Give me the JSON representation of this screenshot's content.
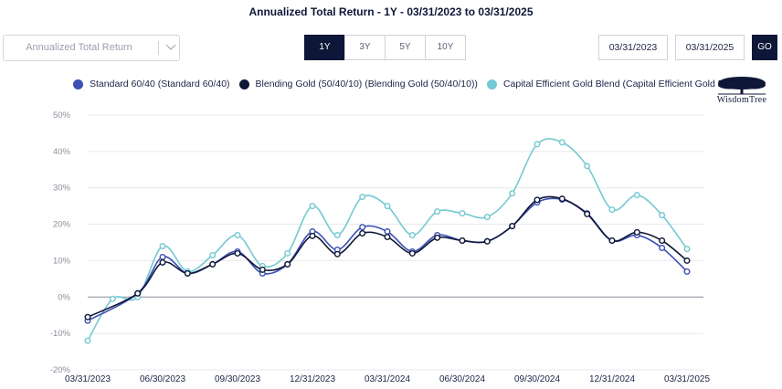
{
  "title": "Annualized Total Return - 1Y - 03/31/2023 to 03/31/2025",
  "controls": {
    "metric_dropdown": "Annualized Total Return",
    "periods": [
      "1Y",
      "3Y",
      "5Y",
      "10Y"
    ],
    "active_period": "1Y",
    "start_date": "03/31/2023",
    "end_date": "03/31/2025",
    "go_label": "GO"
  },
  "logo": {
    "name": "WisdomTree",
    "text": "WisdomTree"
  },
  "colors": {
    "standard": "#3b4fb5",
    "blending": "#0f1738",
    "capital": "#74c9d2",
    "grid": "#e6e8ee",
    "zero_line": "#8a8f9c",
    "active_button": "#0f1738"
  },
  "chart_data": {
    "type": "line",
    "title": "Annualized Total Return - 1Y - 03/31/2023 to 03/31/2025",
    "ylim": [
      -20,
      50
    ],
    "yticks": [
      -20,
      -10,
      0,
      10,
      20,
      30,
      40,
      50
    ],
    "ytick_labels": [
      "-20%",
      "-10%",
      "0%",
      "10%",
      "20%",
      "30%",
      "40%",
      "50%"
    ],
    "x_tick_labels": [
      "03/31/2023",
      "06/30/2023",
      "09/30/2023",
      "12/31/2023",
      "03/31/2024",
      "06/30/2024",
      "09/30/2024",
      "12/31/2024",
      "03/31/2025"
    ],
    "x": [
      "03/31/2023",
      "04/30/2023",
      "05/31/2023",
      "06/30/2023",
      "07/31/2023",
      "08/31/2023",
      "09/30/2023",
      "10/31/2023",
      "11/30/2023",
      "12/31/2023",
      "01/31/2024",
      "02/29/2024",
      "03/31/2024",
      "04/30/2024",
      "05/31/2024",
      "06/30/2024",
      "07/31/2024",
      "08/31/2024",
      "09/30/2024",
      "10/31/2024",
      "11/30/2024",
      "12/31/2024",
      "01/31/2025",
      "02/28/2025",
      "03/31/2025"
    ],
    "legend_position": "top",
    "grid": true,
    "series": [
      {
        "name": "Standard 60/40 (Standard 60/40)",
        "color_key": "standard",
        "values": [
          -6.5,
          null,
          1.0,
          11.0,
          6.5,
          9.0,
          12.5,
          6.5,
          9.0,
          18.0,
          13.0,
          19.2,
          18.0,
          12.5,
          17.0,
          15.5,
          15.3,
          19.5,
          26.0,
          26.8,
          23.0,
          15.5,
          17.0,
          13.5,
          7.0
        ]
      },
      {
        "name": "Blending Gold (50/40/10) (Blending Gold (50/40/10))",
        "color_key": "blending",
        "values": [
          -5.5,
          null,
          1.0,
          9.5,
          6.5,
          9.0,
          12.0,
          7.5,
          9.0,
          16.8,
          11.8,
          17.5,
          16.5,
          12.0,
          16.3,
          15.5,
          15.3,
          19.5,
          26.7,
          27.0,
          22.8,
          15.5,
          17.8,
          15.5,
          10.0
        ]
      },
      {
        "name": "Capital Efficient Gold Blend (Capital Efficient Gold Blend)",
        "color_key": "capital",
        "values": [
          -12.0,
          -0.5,
          0.0,
          14.0,
          7.0,
          11.5,
          17.0,
          8.5,
          12.0,
          25.0,
          17.0,
          27.5,
          25.0,
          17.0,
          23.5,
          23.0,
          22.0,
          28.5,
          42.0,
          42.5,
          36.0,
          24.0,
          28.0,
          22.5,
          13.2
        ]
      }
    ]
  }
}
